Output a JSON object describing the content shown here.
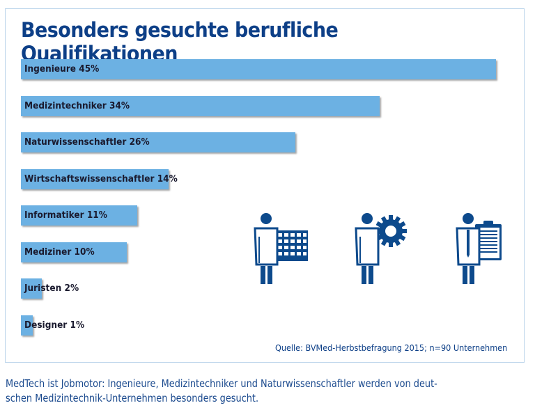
{
  "chart_data": {
    "type": "bar",
    "orientation": "horizontal",
    "title": "Besonders gesuchte berufliche Qualifikationen",
    "categories": [
      "Ingenieure",
      "Medizintechniker",
      "Naturwissenschaftler",
      "Wirtschaftswissenschaftler",
      "Informatiker",
      "Mediziner",
      "Juristen",
      "Designer"
    ],
    "values": [
      45,
      34,
      26,
      14,
      11,
      10,
      2,
      1
    ],
    "labels": [
      "Ingenieure 45%",
      "Medizintechniker 34%",
      "Naturwissenschaftler 26%",
      "Wirtschaftswissenschaftler 14%",
      "Informatiker 11%",
      "Mediziner 10%",
      "Juristen 2%",
      "Designer 1%"
    ],
    "unit": "%",
    "xlim": [
      0,
      45
    ],
    "grid": false,
    "bar_color": "#6cb1e3",
    "source": "Quelle: BVMed-Herbstbefragung 2015; n=90 Unternehmen"
  },
  "colors": {
    "title": "#0d3f87",
    "icons": "#0d4a8c"
  },
  "icons": [
    "person-with-grid-icon",
    "person-with-gear-icon",
    "person-with-clipboard-icon"
  ],
  "caption": {
    "line1": "MedTech ist Jobmotor: Ingenieure, Medizintechniker und Naturwissenschaftler werden von deut-",
    "line2": "schen Medizintechnik-Unternehmen besonders gesucht."
  }
}
